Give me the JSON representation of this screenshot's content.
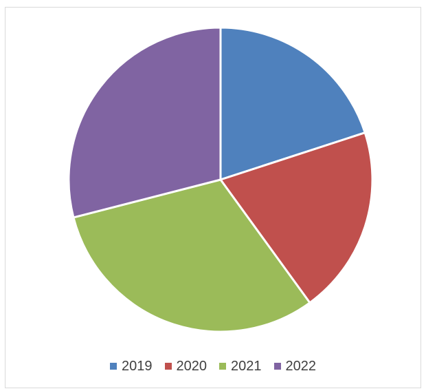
{
  "chart_data": {
    "type": "pie",
    "title": "",
    "categories": [
      "2019",
      "2020",
      "2021",
      "2022"
    ],
    "values": [
      20,
      20,
      31,
      29
    ],
    "colors": [
      "#4f81bd",
      "#c0504d",
      "#9bbb59",
      "#8064a2"
    ],
    "legend_position": "bottom",
    "start_angle": "top",
    "direction": "clockwise"
  }
}
